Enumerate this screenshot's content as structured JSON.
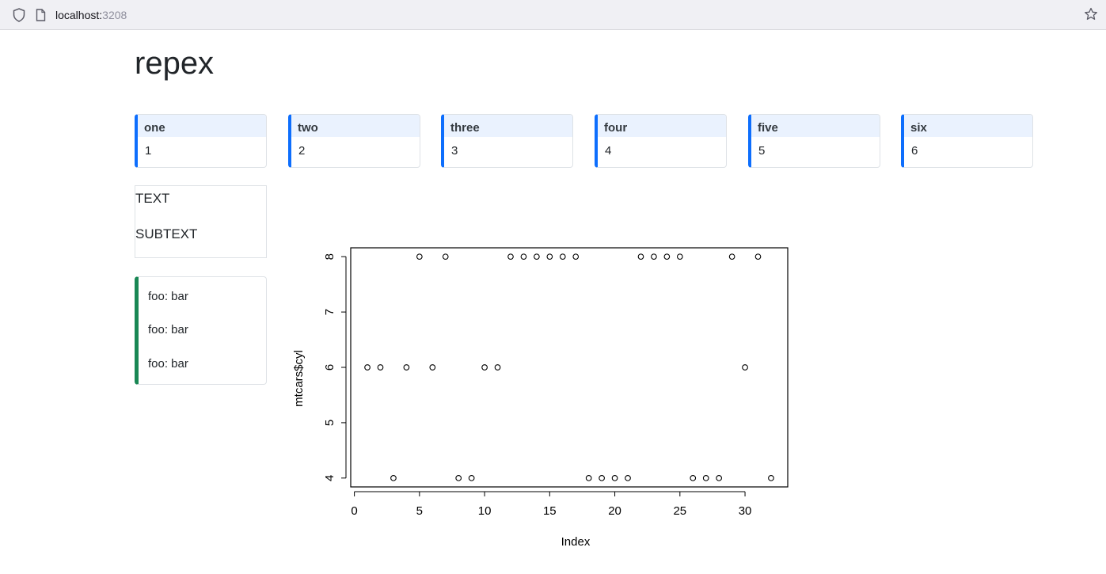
{
  "browser": {
    "url_host": "localhost:",
    "url_port": "3208"
  },
  "page": {
    "title": "repex"
  },
  "value_boxes": [
    {
      "label": "one",
      "value": "1"
    },
    {
      "label": "two",
      "value": "2"
    },
    {
      "label": "three",
      "value": "3"
    },
    {
      "label": "four",
      "value": "4"
    },
    {
      "label": "five",
      "value": "5"
    },
    {
      "label": "six",
      "value": "6"
    }
  ],
  "text_card": {
    "text": "TEXT",
    "subtext": "SUBTEXT"
  },
  "foo_card": {
    "items": [
      "foo: bar",
      "foo: bar",
      "foo: bar"
    ]
  },
  "colors": {
    "accent_blue": "#0d6efd",
    "accent_green": "#198754",
    "box_header": "#eaf2fe"
  },
  "chart_data": {
    "type": "scatter",
    "xlabel": "Index",
    "ylabel": "mtcars$cyl",
    "x": [
      1,
      2,
      3,
      4,
      5,
      6,
      7,
      8,
      9,
      10,
      11,
      12,
      13,
      14,
      15,
      16,
      17,
      18,
      19,
      20,
      21,
      22,
      23,
      24,
      25,
      26,
      27,
      28,
      29,
      30,
      31,
      32
    ],
    "y": [
      6,
      6,
      4,
      6,
      8,
      6,
      8,
      4,
      4,
      6,
      6,
      8,
      8,
      8,
      8,
      8,
      8,
      4,
      4,
      4,
      4,
      8,
      8,
      8,
      8,
      4,
      4,
      4,
      8,
      6,
      8,
      4
    ],
    "xticks": [
      0,
      5,
      10,
      15,
      20,
      25,
      30
    ],
    "yticks": [
      4,
      5,
      6,
      7,
      8
    ],
    "xlim": [
      -0.28,
      33.28
    ],
    "ylim": [
      3.84,
      8.16
    ],
    "marker": "open-circle",
    "grid": false
  }
}
